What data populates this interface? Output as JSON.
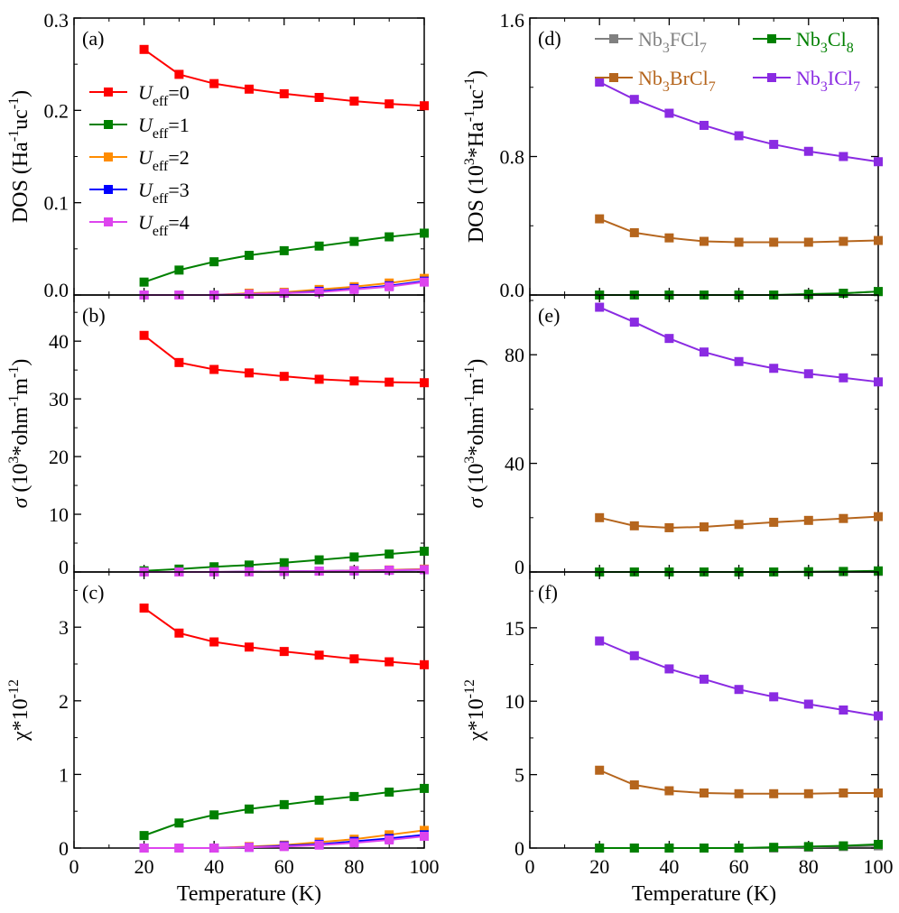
{
  "colors": {
    "U0": "#ff0000",
    "U1": "#008000",
    "U2": "#ff8c00",
    "U3": "#0000ff",
    "U4": "#dd44ee",
    "FCl": "#808080",
    "Cl8": "#008000",
    "BrCl": "#b5651d",
    "ICl": "#8a2be2"
  },
  "chart_data": {
    "type": "line",
    "x_title": "Temperature (K)",
    "x_ticks": [
      "0",
      "20",
      "40",
      "60",
      "80",
      "100"
    ],
    "x_values": [
      20,
      30,
      40,
      50,
      60,
      70,
      80,
      90,
      100
    ],
    "xlim": [
      0,
      100
    ],
    "left_legend": [
      {
        "sym": "U",
        "sub": "eff",
        "suffix": "=0"
      },
      {
        "sym": "U",
        "sub": "eff",
        "suffix": "=1"
      },
      {
        "sym": "U",
        "sub": "eff",
        "suffix": "=2"
      },
      {
        "sym": "U",
        "sub": "eff",
        "suffix": "=3"
      },
      {
        "sym": "U",
        "sub": "eff",
        "suffix": "=4"
      }
    ],
    "right_legend": [
      {
        "label": "Nb3FCl7",
        "parts": [
          "Nb",
          "3",
          "FCl",
          "7"
        ]
      },
      {
        "label": "Nb3Cl8",
        "parts": [
          "Nb",
          "3",
          "Cl",
          "8"
        ]
      },
      {
        "label": "Nb3BrCl7",
        "parts": [
          "Nb",
          "3",
          "BrCl",
          "7"
        ]
      },
      {
        "label": "Nb3ICl7",
        "parts": [
          "Nb",
          "3",
          "ICl",
          "7"
        ]
      }
    ],
    "panels": [
      {
        "id": "a",
        "tag": "(a)",
        "ylim": [
          0,
          0.3
        ],
        "yticks": [
          "0.0",
          "0.1",
          "0.2",
          "0.3"
        ],
        "ylabel": "DOS (Ha-1uc-1)",
        "series": [
          {
            "name": "Ueff=0",
            "values": [
              0.266,
              0.239,
              0.229,
              0.223,
              0.218,
              0.214,
              0.21,
              0.207,
              0.205
            ]
          },
          {
            "name": "Ueff=1",
            "values": [
              0.014,
              0.027,
              0.036,
              0.043,
              0.048,
              0.053,
              0.058,
              0.063,
              0.067
            ]
          },
          {
            "name": "Ueff=2",
            "values": [
              0.0,
              0.0,
              0.0,
              0.002,
              0.003,
              0.006,
              0.009,
              0.013,
              0.018
            ]
          },
          {
            "name": "Ueff=3",
            "values": [
              0.0,
              0.0,
              0.0,
              0.001,
              0.002,
              0.004,
              0.007,
              0.01,
              0.015
            ]
          },
          {
            "name": "Ueff=4",
            "values": [
              0.0,
              0.0,
              0.0,
              0.001,
              0.002,
              0.003,
              0.006,
              0.009,
              0.014
            ]
          }
        ]
      },
      {
        "id": "b",
        "tag": "(b)",
        "ylim": [
          0,
          48
        ],
        "yticks": [
          "0",
          "10",
          "20",
          "30",
          "40"
        ],
        "ylabel": "σ (103*ohm-1m-1)",
        "series": [
          {
            "name": "Ueff=0",
            "values": [
              41.0,
              36.3,
              35.1,
              34.5,
              33.9,
              33.4,
              33.1,
              32.9,
              32.8
            ]
          },
          {
            "name": "Ueff=1",
            "values": [
              0.2,
              0.5,
              0.9,
              1.2,
              1.6,
              2.1,
              2.6,
              3.1,
              3.6
            ]
          },
          {
            "name": "Ueff=2",
            "values": [
              0.0,
              0.0,
              0.0,
              0.05,
              0.1,
              0.15,
              0.25,
              0.35,
              0.5
            ]
          },
          {
            "name": "Ueff=3",
            "values": [
              0.0,
              0.0,
              0.0,
              0.05,
              0.1,
              0.15,
              0.2,
              0.3,
              0.4
            ]
          },
          {
            "name": "Ueff=4",
            "values": [
              0.0,
              0.0,
              0.0,
              0.05,
              0.1,
              0.15,
              0.2,
              0.3,
              0.4
            ]
          }
        ]
      },
      {
        "id": "c",
        "tag": "(c)",
        "ylim": [
          0,
          3.75
        ],
        "yticks": [
          "0",
          "1",
          "2",
          "3"
        ],
        "ylabel": "χ*10-12",
        "series": [
          {
            "name": "Ueff=0",
            "values": [
              3.26,
              2.92,
              2.8,
              2.73,
              2.67,
              2.62,
              2.57,
              2.53,
              2.49
            ]
          },
          {
            "name": "Ueff=1",
            "values": [
              0.17,
              0.34,
              0.45,
              0.53,
              0.59,
              0.65,
              0.7,
              0.76,
              0.81
            ]
          },
          {
            "name": "Ueff=2",
            "values": [
              0.0,
              0.0,
              0.0,
              0.02,
              0.04,
              0.08,
              0.12,
              0.18,
              0.24
            ]
          },
          {
            "name": "Ueff=3",
            "values": [
              0.0,
              0.0,
              0.0,
              0.01,
              0.03,
              0.05,
              0.09,
              0.13,
              0.18
            ]
          },
          {
            "name": "Ueff=4",
            "values": [
              0.0,
              0.0,
              0.0,
              0.01,
              0.02,
              0.04,
              0.07,
              0.11,
              0.16
            ]
          }
        ]
      },
      {
        "id": "d",
        "tag": "(d)",
        "ylim": [
          0,
          1.6
        ],
        "yticks": [
          "0.0",
          "0.8",
          "1.6"
        ],
        "ylabel": "DOS (103*Ha-1uc-1)",
        "series": [
          {
            "name": "Nb3FCl7",
            "values": [
              0.0,
              0.0,
              0.0,
              0.0,
              0.0,
              0.0,
              0.0,
              0.01,
              0.02
            ]
          },
          {
            "name": "Nb3Cl8",
            "values": [
              0.0,
              0.0,
              0.0,
              0.0,
              0.0,
              0.0,
              0.005,
              0.01,
              0.02
            ]
          },
          {
            "name": "Nb3BrCl7",
            "values": [
              0.44,
              0.36,
              0.33,
              0.31,
              0.305,
              0.305,
              0.305,
              0.31,
              0.315
            ]
          },
          {
            "name": "Nb3ICl7",
            "values": [
              1.23,
              1.13,
              1.05,
              0.98,
              0.92,
              0.87,
              0.83,
              0.8,
              0.77
            ]
          }
        ]
      },
      {
        "id": "e",
        "tag": "(e)",
        "ylim": [
          0,
          102
        ],
        "yticks": [
          "0",
          "40",
          "80"
        ],
        "ylabel": "σ (103*ohm-1m-1)",
        "series": [
          {
            "name": "Nb3FCl7",
            "values": [
              0.0,
              0.0,
              0.0,
              0.0,
              0.0,
              0.0,
              0.0,
              0.1,
              0.2
            ]
          },
          {
            "name": "Nb3Cl8",
            "values": [
              0.0,
              0.0,
              0.0,
              0.0,
              0.0,
              0.0,
              0.1,
              0.2,
              0.4
            ]
          },
          {
            "name": "Nb3BrCl7",
            "values": [
              20.0,
              17.0,
              16.3,
              16.6,
              17.5,
              18.3,
              19.0,
              19.7,
              20.4
            ]
          },
          {
            "name": "Nb3ICl7",
            "values": [
              97.5,
              92.0,
              86.0,
              81.0,
              77.5,
              75.0,
              73.0,
              71.5,
              70.0
            ]
          }
        ]
      },
      {
        "id": "f",
        "tag": "(f)",
        "ylim": [
          0,
          18.8
        ],
        "yticks": [
          "0",
          "5",
          "10",
          "15"
        ],
        "ylabel": "χ*10-12",
        "series": [
          {
            "name": "Nb3FCl7",
            "values": [
              0.0,
              0.0,
              0.0,
              0.0,
              0.0,
              0.0,
              0.05,
              0.1,
              0.15
            ]
          },
          {
            "name": "Nb3Cl8",
            "values": [
              0.0,
              0.0,
              0.0,
              0.0,
              0.0,
              0.05,
              0.1,
              0.15,
              0.25
            ]
          },
          {
            "name": "Nb3BrCl7",
            "values": [
              5.3,
              4.3,
              3.9,
              3.75,
              3.7,
              3.7,
              3.7,
              3.75,
              3.75
            ]
          },
          {
            "name": "Nb3ICl7",
            "values": [
              14.1,
              13.1,
              12.2,
              11.5,
              10.8,
              10.3,
              9.8,
              9.4,
              9.0
            ]
          }
        ]
      }
    ]
  }
}
